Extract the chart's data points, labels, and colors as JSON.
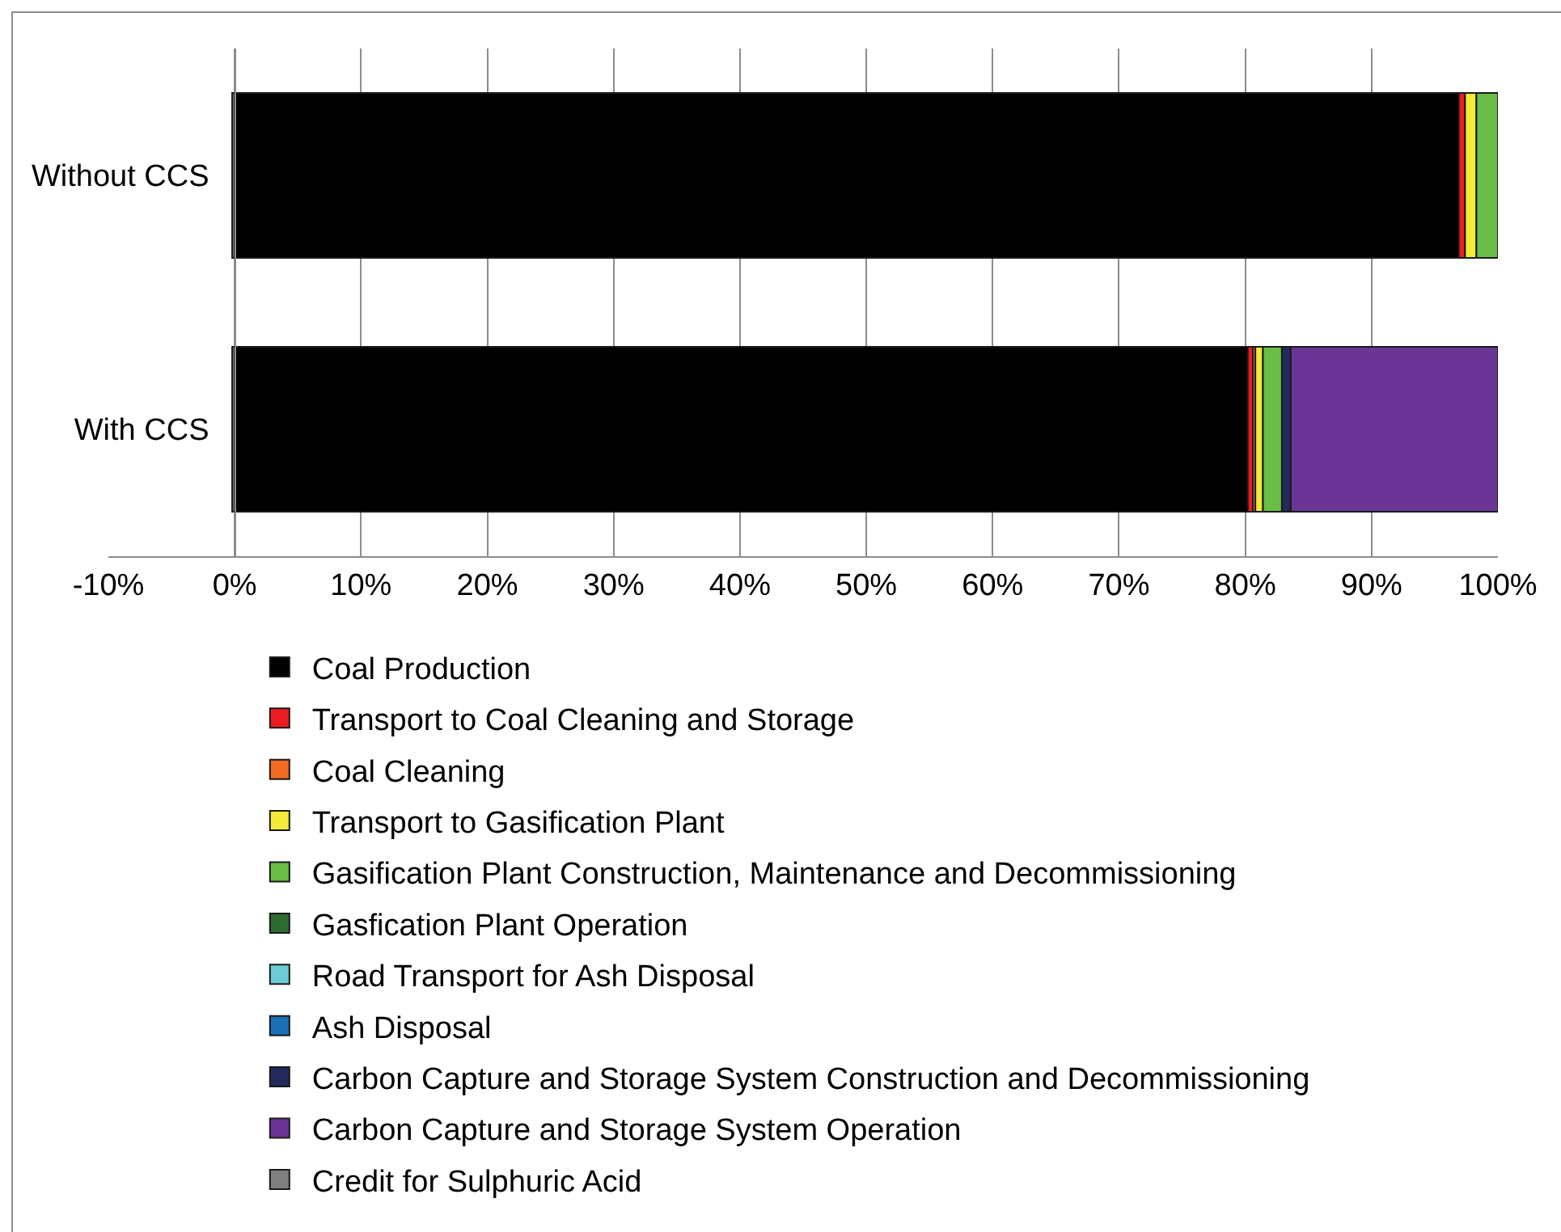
{
  "chart_data": {
    "type": "bar",
    "orientation": "horizontal",
    "stacked": true,
    "categories": [
      "Without CCS",
      "With CCS"
    ],
    "series": [
      {
        "name": "Coal Production",
        "color": "#000000",
        "values": [
          96.9,
          80.2
        ]
      },
      {
        "name": "Transport to Coal Cleaning and Storage",
        "color": "#ed1c24",
        "values": [
          0.5,
          0.4
        ]
      },
      {
        "name": "Coal Cleaning",
        "color": "#f26b21",
        "values": [
          null,
          0.2
        ]
      },
      {
        "name": "Transport to Gasification Plant",
        "color": "#f4ea3a",
        "values": [
          0.9,
          0.6
        ]
      },
      {
        "name": "Gasification Plant Construction, Maintenance and Decommissioning",
        "color": "#6abd45",
        "values": [
          1.7,
          1.5
        ]
      },
      {
        "name": "Gasfication Plant Operation",
        "color": "#2e6b30",
        "values": [
          null,
          null
        ]
      },
      {
        "name": "Road Transport for Ash Disposal",
        "color": "#6ccbd6",
        "values": [
          null,
          null
        ]
      },
      {
        "name": "Ash Disposal",
        "color": "#1a6fb5",
        "values": [
          null,
          null
        ]
      },
      {
        "name": "Carbon Capture and Storage System Construction and Decommissioning",
        "color": "#232a5c",
        "values": [
          null,
          0.7
        ]
      },
      {
        "name": "Carbon Capture and Storage System Operation",
        "color": "#6a3594",
        "values": [
          null,
          16.4
        ]
      },
      {
        "name": "Credit for Sulphuric Acid",
        "color": "#808080",
        "values": [
          -0.2,
          -0.2
        ]
      }
    ],
    "xlim": [
      -10,
      100
    ],
    "xticks": [
      {
        "value": -10,
        "label": "-10%"
      },
      {
        "value": 0,
        "label": "0%"
      },
      {
        "value": 10,
        "label": "10%"
      },
      {
        "value": 20,
        "label": "20%"
      },
      {
        "value": 30,
        "label": "30%"
      },
      {
        "value": 40,
        "label": "40%"
      },
      {
        "value": 50,
        "label": "50%"
      },
      {
        "value": 60,
        "label": "60%"
      },
      {
        "value": 70,
        "label": "70%"
      },
      {
        "value": 80,
        "label": "80%"
      },
      {
        "value": 90,
        "label": "90%"
      },
      {
        "value": 100,
        "label": "100%"
      }
    ],
    "grid": "x",
    "legend": "bottom"
  }
}
